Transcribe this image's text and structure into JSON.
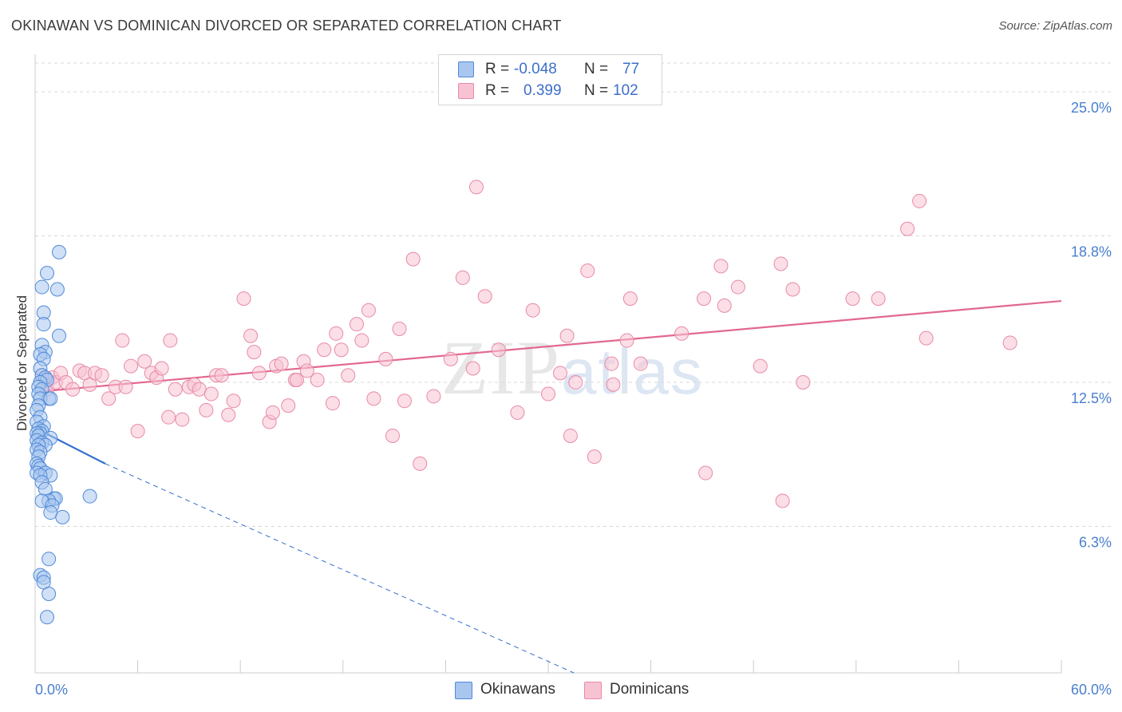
{
  "title": "OKINAWAN VS DOMINICAN DIVORCED OR SEPARATED CORRELATION CHART",
  "source": "Source: ZipAtlas.com",
  "watermark": {
    "zip": "ZIP",
    "atlas": "atlas"
  },
  "legend": {
    "rows": [
      {
        "r_label": "R =",
        "r_value": "-0.048",
        "n_label": "N =",
        "n_value": "77"
      },
      {
        "r_label": "R =",
        "r_value": "0.399",
        "n_label": "N =",
        "n_value": "102"
      }
    ]
  },
  "bottom_legend": {
    "okinawans": "Okinawans",
    "dominicans": "Dominicans"
  },
  "colors": {
    "okinawan_fill": "#a9c6ef",
    "okinawan_stroke": "#4f8ad8",
    "okinawan_line": "#2f6fcf",
    "dominican_fill": "#f7c3d2",
    "dominican_stroke": "#e88aa7",
    "dominican_line": "#e2688f",
    "tick_label": "#4a7fd0"
  },
  "chart_data": {
    "type": "scatter",
    "title": "OKINAWAN VS DOMINICAN DIVORCED OR SEPARATED CORRELATION CHART",
    "xlabel": "",
    "ylabel": "Divorced or Separated",
    "xlim": [
      0,
      60
    ],
    "ylim": [
      0,
      26.2
    ],
    "x_tick_labels": [
      {
        "value": 0,
        "label": "0.0%"
      },
      {
        "value": 60,
        "label": "60.0%"
      }
    ],
    "y_tick_labels": [
      {
        "value": 6.3,
        "label": "6.3%"
      },
      {
        "value": 12.5,
        "label": "12.5%"
      },
      {
        "value": 18.8,
        "label": "18.8%"
      },
      {
        "value": 25.0,
        "label": "25.0%"
      }
    ],
    "grid": true,
    "series": [
      {
        "name": "Okinawans",
        "r": -0.048,
        "n": 77,
        "trend_solid": [
          [
            0.1,
            10.5
          ],
          [
            4.1,
            9.0
          ]
        ],
        "trend_dashed": [
          [
            4.1,
            9.0
          ],
          [
            31.5,
            0
          ]
        ],
        "points": [
          [
            1.4,
            18.1
          ],
          [
            0.7,
            17.2
          ],
          [
            1.3,
            16.5
          ],
          [
            0.4,
            16.6
          ],
          [
            0.5,
            15.5
          ],
          [
            0.5,
            15.0
          ],
          [
            1.4,
            14.5
          ],
          [
            0.4,
            14.1
          ],
          [
            0.6,
            13.8
          ],
          [
            0.3,
            13.7
          ],
          [
            0.5,
            13.5
          ],
          [
            0.3,
            13.1
          ],
          [
            0.4,
            12.8
          ],
          [
            0.6,
            12.7
          ],
          [
            0.7,
            12.6
          ],
          [
            0.3,
            12.5
          ],
          [
            0.2,
            12.3
          ],
          [
            0.4,
            12.2
          ],
          [
            0.2,
            12.0
          ],
          [
            0.8,
            11.8
          ],
          [
            0.3,
            11.8
          ],
          [
            0.9,
            11.8
          ],
          [
            0.2,
            11.5
          ],
          [
            0.1,
            11.3
          ],
          [
            0.3,
            11.0
          ],
          [
            0.1,
            10.8
          ],
          [
            0.5,
            10.6
          ],
          [
            0.2,
            10.5
          ],
          [
            0.4,
            10.4
          ],
          [
            0.3,
            10.3
          ],
          [
            0.1,
            10.3
          ],
          [
            0.2,
            10.2
          ],
          [
            0.9,
            10.1
          ],
          [
            0.1,
            10.0
          ],
          [
            0.4,
            9.9
          ],
          [
            0.6,
            9.8
          ],
          [
            0.2,
            9.8
          ],
          [
            0.1,
            9.6
          ],
          [
            0.3,
            9.5
          ],
          [
            0.2,
            9.3
          ],
          [
            0.1,
            9.0
          ],
          [
            0.2,
            8.9
          ],
          [
            0.3,
            8.8
          ],
          [
            0.1,
            8.6
          ],
          [
            0.6,
            8.6
          ],
          [
            0.9,
            8.5
          ],
          [
            0.3,
            8.5
          ],
          [
            0.4,
            8.2
          ],
          [
            0.6,
            7.9
          ],
          [
            3.2,
            7.6
          ],
          [
            1.1,
            7.5
          ],
          [
            1.2,
            7.5
          ],
          [
            0.8,
            7.4
          ],
          [
            0.4,
            7.4
          ],
          [
            1.0,
            7.2
          ],
          [
            0.9,
            6.9
          ],
          [
            1.6,
            6.7
          ],
          [
            0.8,
            4.9
          ],
          [
            0.3,
            4.2
          ],
          [
            0.5,
            4.1
          ],
          [
            0.5,
            3.9
          ],
          [
            0.8,
            3.4
          ],
          [
            0.7,
            2.4
          ]
        ]
      },
      {
        "name": "Dominicans",
        "r": 0.399,
        "n": 102,
        "trend": [
          [
            0.2,
            12.1
          ],
          [
            60.0,
            16.0
          ]
        ],
        "points": [
          [
            0.4,
            12.8
          ],
          [
            0.6,
            12.4
          ],
          [
            0.7,
            12.2
          ],
          [
            1.0,
            12.7
          ],
          [
            1.2,
            12.5
          ],
          [
            1.5,
            12.9
          ],
          [
            1.8,
            12.5
          ],
          [
            2.2,
            12.2
          ],
          [
            2.6,
            13.0
          ],
          [
            2.9,
            12.9
          ],
          [
            3.2,
            12.4
          ],
          [
            3.5,
            12.9
          ],
          [
            3.9,
            12.8
          ],
          [
            4.3,
            11.8
          ],
          [
            4.7,
            12.3
          ],
          [
            5.1,
            14.3
          ],
          [
            5.3,
            12.3
          ],
          [
            5.6,
            13.2
          ],
          [
            6.0,
            10.4
          ],
          [
            6.4,
            13.4
          ],
          [
            6.8,
            12.9
          ],
          [
            7.1,
            12.7
          ],
          [
            7.4,
            13.1
          ],
          [
            7.8,
            11.0
          ],
          [
            7.9,
            14.3
          ],
          [
            8.2,
            12.2
          ],
          [
            8.6,
            10.9
          ],
          [
            9.0,
            12.3
          ],
          [
            9.3,
            12.4
          ],
          [
            9.6,
            12.2
          ],
          [
            10.0,
            11.3
          ],
          [
            10.3,
            12.0
          ],
          [
            10.6,
            12.8
          ],
          [
            10.9,
            12.8
          ],
          [
            11.3,
            11.1
          ],
          [
            11.6,
            11.7
          ],
          [
            12.2,
            16.1
          ],
          [
            12.6,
            14.5
          ],
          [
            12.8,
            13.8
          ],
          [
            13.1,
            12.9
          ],
          [
            13.7,
            10.8
          ],
          [
            13.9,
            11.2
          ],
          [
            14.1,
            13.2
          ],
          [
            14.4,
            13.3
          ],
          [
            14.8,
            11.5
          ],
          [
            15.2,
            12.6
          ],
          [
            15.3,
            12.6
          ],
          [
            15.7,
            13.4
          ],
          [
            15.9,
            13.0
          ],
          [
            16.5,
            12.6
          ],
          [
            16.9,
            13.9
          ],
          [
            17.4,
            11.6
          ],
          [
            17.6,
            14.6
          ],
          [
            17.9,
            13.9
          ],
          [
            18.3,
            12.8
          ],
          [
            18.8,
            15.0
          ],
          [
            19.1,
            14.3
          ],
          [
            19.5,
            15.6
          ],
          [
            19.8,
            11.8
          ],
          [
            20.5,
            13.5
          ],
          [
            20.9,
            10.2
          ],
          [
            21.3,
            14.8
          ],
          [
            21.6,
            11.7
          ],
          [
            22.1,
            17.8
          ],
          [
            22.5,
            9.0
          ],
          [
            23.3,
            11.9
          ],
          [
            24.3,
            13.5
          ],
          [
            25.0,
            17.0
          ],
          [
            25.6,
            13.1
          ],
          [
            25.8,
            20.9
          ],
          [
            26.3,
            16.2
          ],
          [
            27.1,
            13.9
          ],
          [
            28.2,
            11.2
          ],
          [
            29.1,
            15.6
          ],
          [
            30.0,
            12.0
          ],
          [
            30.7,
            12.9
          ],
          [
            31.1,
            14.5
          ],
          [
            31.3,
            10.2
          ],
          [
            31.6,
            12.5
          ],
          [
            32.3,
            17.3
          ],
          [
            32.7,
            9.3
          ],
          [
            33.7,
            13.3
          ],
          [
            33.8,
            12.4
          ],
          [
            34.6,
            14.3
          ],
          [
            34.8,
            16.1
          ],
          [
            35.4,
            13.3
          ],
          [
            37.8,
            14.6
          ],
          [
            39.1,
            16.1
          ],
          [
            39.2,
            8.6
          ],
          [
            40.1,
            17.5
          ],
          [
            40.3,
            15.8
          ],
          [
            41.1,
            16.6
          ],
          [
            42.4,
            13.2
          ],
          [
            43.6,
            17.6
          ],
          [
            43.7,
            7.4
          ],
          [
            44.3,
            16.5
          ],
          [
            44.9,
            12.5
          ],
          [
            47.8,
            16.1
          ],
          [
            49.3,
            16.1
          ],
          [
            51.0,
            19.1
          ],
          [
            51.7,
            20.3
          ],
          [
            52.1,
            14.4
          ],
          [
            57.0,
            14.2
          ]
        ]
      }
    ]
  }
}
